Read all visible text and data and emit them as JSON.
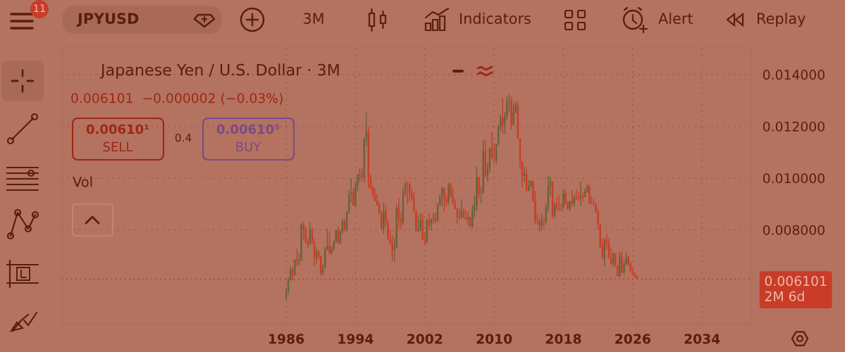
{
  "chart_data": {
    "type": "candlestick",
    "title": "Japanese Yen / U.S. Dollar · 3M",
    "subtitle": "0.006101  −0.000002 (−0.03%)",
    "annotations": [
      "11",
      "JPYUSD",
      "3M",
      "Indicators",
      "Alert",
      "Replay",
      "0.00610¹",
      "SELL",
      "0.4",
      "0.00610⁵",
      "BUY",
      "Vol"
    ],
    "x": [
      "1986-01",
      "1986-04",
      "1986-07",
      "1986-10",
      "1987-01",
      "1987-04",
      "1987-07",
      "1987-10",
      "1988-01",
      "1988-04",
      "1988-07",
      "1988-10",
      "1989-01",
      "1989-04",
      "1989-07",
      "1989-10",
      "1990-01",
      "1990-04",
      "1990-07",
      "1990-10",
      "1991-01",
      "1991-04",
      "1991-07",
      "1991-10",
      "1992-01",
      "1992-04",
      "1992-07",
      "1992-10",
      "1993-01",
      "1993-04",
      "1993-07",
      "1993-10",
      "1994-01",
      "1994-04",
      "1994-07",
      "1994-10",
      "1995-01",
      "1995-04",
      "1995-07",
      "1995-10",
      "1996-01",
      "1996-04",
      "1996-07",
      "1996-10",
      "1997-01",
      "1997-04",
      "1997-07",
      "1997-10",
      "1998-01",
      "1998-04",
      "1998-07",
      "1998-10",
      "1999-01",
      "1999-04",
      "1999-07",
      "1999-10",
      "2000-01",
      "2000-04",
      "2000-07",
      "2000-10",
      "2001-01",
      "2001-04",
      "2001-07",
      "2001-10",
      "2002-01",
      "2002-04",
      "2002-07",
      "2002-10",
      "2003-01",
      "2003-04",
      "2003-07",
      "2003-10",
      "2004-01",
      "2004-04",
      "2004-07",
      "2004-10",
      "2005-01",
      "2005-04",
      "2005-07",
      "2005-10",
      "2006-01",
      "2006-04",
      "2006-07",
      "2006-10",
      "2007-01",
      "2007-04",
      "2007-07",
      "2007-10",
      "2008-01",
      "2008-04",
      "2008-07",
      "2008-10",
      "2009-01",
      "2009-04",
      "2009-07",
      "2009-10",
      "2010-01",
      "2010-04",
      "2010-07",
      "2010-10",
      "2011-01",
      "2011-04",
      "2011-07",
      "2011-10",
      "2012-01",
      "2012-04",
      "2012-07",
      "2012-10",
      "2013-01",
      "2013-04",
      "2013-07",
      "2013-10",
      "2014-01",
      "2014-04",
      "2014-07",
      "2014-10",
      "2015-01",
      "2015-04",
      "2015-07",
      "2015-10",
      "2016-01",
      "2016-04",
      "2016-07",
      "2016-10",
      "2017-01",
      "2017-04",
      "2017-07",
      "2017-10",
      "2018-01",
      "2018-04",
      "2018-07",
      "2018-10",
      "2019-01",
      "2019-04",
      "2019-07",
      "2019-10",
      "2020-01",
      "2020-04",
      "2020-07",
      "2020-10",
      "2021-01",
      "2021-04",
      "2021-07",
      "2021-10",
      "2022-01",
      "2022-04",
      "2022-07",
      "2022-10",
      "2023-01",
      "2023-04",
      "2023-07",
      "2023-10",
      "2024-01",
      "2024-04",
      "2024-07",
      "2024-10",
      "2025-01",
      "2025-04",
      "2025-07",
      "2025-10",
      "2026-01",
      "2026-04",
      "2026-07"
    ],
    "ohlc": [
      [
        0.00535,
        0.00575,
        0.0053,
        0.00565
      ],
      [
        0.00565,
        0.00615,
        0.0055,
        0.00606
      ],
      [
        0.00606,
        0.0066,
        0.00602,
        0.00649
      ],
      [
        0.00649,
        0.00654,
        0.00606,
        0.00625
      ],
      [
        0.00625,
        0.00687,
        0.00623,
        0.00685
      ],
      [
        0.00685,
        0.00728,
        0.00662,
        0.0068
      ],
      [
        0.0068,
        0.0071,
        0.0066,
        0.00683
      ],
      [
        0.00683,
        0.00826,
        0.0068,
        0.0082
      ],
      [
        0.0082,
        0.00832,
        0.0076,
        0.00803
      ],
      [
        0.00803,
        0.00812,
        0.00746,
        0.00752
      ],
      [
        0.00752,
        0.00766,
        0.0073,
        0.00744
      ],
      [
        0.00744,
        0.00829,
        0.00741,
        0.00799
      ],
      [
        0.00799,
        0.0081,
        0.00747,
        0.00754
      ],
      [
        0.00754,
        0.00766,
        0.00661,
        0.00694
      ],
      [
        0.00694,
        0.00733,
        0.00669,
        0.00717
      ],
      [
        0.00717,
        0.00719,
        0.00683,
        0.00697
      ],
      [
        0.00697,
        0.00699,
        0.00624,
        0.00634
      ],
      [
        0.00634,
        0.00666,
        0.00623,
        0.00656
      ],
      [
        0.00656,
        0.00735,
        0.00651,
        0.00725
      ],
      [
        0.00725,
        0.00805,
        0.00722,
        0.00738
      ],
      [
        0.00738,
        0.00791,
        0.00704,
        0.00712
      ],
      [
        0.00712,
        0.00735,
        0.00704,
        0.00725
      ],
      [
        0.00725,
        0.0076,
        0.00719,
        0.00752
      ],
      [
        0.00752,
        0.00799,
        0.0075,
        0.00799
      ],
      [
        0.00799,
        0.00815,
        0.00743,
        0.0075
      ],
      [
        0.0075,
        0.00802,
        0.00743,
        0.00794
      ],
      [
        0.00794,
        0.00843,
        0.00784,
        0.00836
      ],
      [
        0.00836,
        0.0084,
        0.00794,
        0.00801
      ],
      [
        0.00801,
        0.00871,
        0.00794,
        0.00867
      ],
      [
        0.00867,
        0.00954,
        0.00862,
        0.00939
      ],
      [
        0.00939,
        0.00999,
        0.00905,
        0.00945
      ],
      [
        0.00945,
        0.00962,
        0.00893,
        0.00894
      ],
      [
        0.00894,
        0.00987,
        0.00889,
        0.00972
      ],
      [
        0.00972,
        0.01015,
        0.00948,
        0.01014
      ],
      [
        0.01014,
        0.01038,
        0.00985,
        0.01015
      ],
      [
        0.01015,
        0.0104,
        0.0099,
        0.01003
      ],
      [
        0.01003,
        0.01155,
        0.00985,
        0.01155
      ],
      [
        0.01155,
        0.01254,
        0.01124,
        0.01181
      ],
      [
        0.01181,
        0.01198,
        0.00959,
        0.01004
      ],
      [
        0.01004,
        0.01015,
        0.00957,
        0.00966
      ],
      [
        0.00966,
        0.00971,
        0.00926,
        0.00936
      ],
      [
        0.00936,
        0.0096,
        0.00909,
        0.00912
      ],
      [
        0.00912,
        0.00938,
        0.00894,
        0.00897
      ],
      [
        0.00897,
        0.00906,
        0.00861,
        0.00862
      ],
      [
        0.00862,
        0.00873,
        0.00801,
        0.00806
      ],
      [
        0.00806,
        0.00904,
        0.00784,
        0.00873
      ],
      [
        0.00873,
        0.00895,
        0.00813,
        0.00829
      ],
      [
        0.00829,
        0.0084,
        0.0076,
        0.00767
      ],
      [
        0.00767,
        0.00801,
        0.00741,
        0.0075
      ],
      [
        0.0075,
        0.00778,
        0.00681,
        0.00722
      ],
      [
        0.00722,
        0.00769,
        0.00677,
        0.00733
      ],
      [
        0.00733,
        0.00897,
        0.0073,
        0.00884
      ],
      [
        0.00884,
        0.00923,
        0.00805,
        0.00842
      ],
      [
        0.00842,
        0.00866,
        0.00802,
        0.00826
      ],
      [
        0.00826,
        0.00965,
        0.0082,
        0.00943
      ],
      [
        0.00943,
        0.00987,
        0.0093,
        0.00978
      ],
      [
        0.00978,
        0.00986,
        0.00897,
        0.00976
      ],
      [
        0.00976,
        0.00986,
        0.00909,
        0.00943
      ],
      [
        0.00943,
        0.00959,
        0.00914,
        0.00926
      ],
      [
        0.00926,
        0.00945,
        0.0087,
        0.00874
      ],
      [
        0.00874,
        0.00877,
        0.00792,
        0.00797
      ],
      [
        0.00797,
        0.00855,
        0.0079,
        0.00803
      ],
      [
        0.00803,
        0.00864,
        0.00794,
        0.00838
      ],
      [
        0.00838,
        0.00864,
        0.00759,
        0.00763
      ],
      [
        0.00763,
        0.00792,
        0.0074,
        0.00754
      ],
      [
        0.00754,
        0.00845,
        0.00746,
        0.00837
      ],
      [
        0.00837,
        0.00866,
        0.008,
        0.00822
      ],
      [
        0.00822,
        0.00845,
        0.00796,
        0.00842
      ],
      [
        0.00842,
        0.00866,
        0.00825,
        0.00847
      ],
      [
        0.00847,
        0.00867,
        0.00826,
        0.00835
      ],
      [
        0.00835,
        0.00903,
        0.0083,
        0.00898
      ],
      [
        0.00898,
        0.00936,
        0.00893,
        0.00933
      ],
      [
        0.00933,
        0.00967,
        0.00891,
        0.0096
      ],
      [
        0.0096,
        0.00965,
        0.0087,
        0.00919
      ],
      [
        0.00919,
        0.00933,
        0.00891,
        0.00909
      ],
      [
        0.00909,
        0.00982,
        0.00897,
        0.00975
      ],
      [
        0.00975,
        0.00983,
        0.00926,
        0.00933
      ],
      [
        0.00933,
        0.00962,
        0.00899,
        0.00902
      ],
      [
        0.00902,
        0.00919,
        0.00879,
        0.00882
      ],
      [
        0.00882,
        0.00887,
        0.00824,
        0.00848
      ],
      [
        0.00848,
        0.00882,
        0.00838,
        0.0085
      ],
      [
        0.0085,
        0.00919,
        0.00845,
        0.00873
      ],
      [
        0.00873,
        0.00882,
        0.00845,
        0.00847
      ],
      [
        0.00847,
        0.00874,
        0.00834,
        0.0084
      ],
      [
        0.0084,
        0.00868,
        0.00818,
        0.00849
      ],
      [
        0.00849,
        0.0085,
        0.00806,
        0.00812
      ],
      [
        0.00812,
        0.00896,
        0.00808,
        0.00871
      ],
      [
        0.00871,
        0.00933,
        0.00848,
        0.00895
      ],
      [
        0.00895,
        0.01044,
        0.00873,
        0.01003
      ],
      [
        0.01003,
        0.01005,
        0.00921,
        0.00942
      ],
      [
        0.00942,
        0.00966,
        0.00903,
        0.00943
      ],
      [
        0.00943,
        0.01148,
        0.00939,
        0.01104
      ],
      [
        0.01104,
        0.01148,
        0.01003,
        0.01011
      ],
      [
        0.01011,
        0.01059,
        0.00986,
        0.01037
      ],
      [
        0.01037,
        0.01118,
        0.01022,
        0.01115
      ],
      [
        0.01115,
        0.01179,
        0.01073,
        0.01075
      ],
      [
        0.01075,
        0.01134,
        0.01056,
        0.0107
      ],
      [
        0.0107,
        0.01134,
        0.01054,
        0.01131
      ],
      [
        0.01131,
        0.01206,
        0.01125,
        0.01198
      ],
      [
        0.01198,
        0.01247,
        0.01183,
        0.01233
      ],
      [
        0.01233,
        0.01311,
        0.0117,
        0.01203
      ],
      [
        0.01203,
        0.01256,
        0.0117,
        0.01242
      ],
      [
        0.01242,
        0.01318,
        0.01227,
        0.01297
      ],
      [
        0.01297,
        0.01323,
        0.01256,
        0.013
      ],
      [
        0.013,
        0.01316,
        0.01188,
        0.01206
      ],
      [
        0.01206,
        0.01289,
        0.01205,
        0.01253
      ],
      [
        0.01253,
        0.01297,
        0.0125,
        0.01282
      ],
      [
        0.01282,
        0.01292,
        0.01152,
        0.01153
      ],
      [
        0.01153,
        0.01156,
        0.01034,
        0.01062
      ],
      [
        0.01062,
        0.01066,
        0.00964,
        0.01009
      ],
      [
        0.01009,
        0.01044,
        0.00985,
        0.01017
      ],
      [
        0.01017,
        0.01035,
        0.00949,
        0.0095
      ],
      [
        0.0095,
        0.00992,
        0.00949,
        0.00969
      ],
      [
        0.00969,
        0.00992,
        0.00961,
        0.00987
      ],
      [
        0.00987,
        0.00989,
        0.00908,
        0.00912
      ],
      [
        0.00912,
        0.00951,
        0.00821,
        0.00835
      ],
      [
        0.00835,
        0.00863,
        0.0082,
        0.00833
      ],
      [
        0.00833,
        0.00845,
        0.00794,
        0.00816
      ],
      [
        0.00816,
        0.00861,
        0.00798,
        0.00834
      ],
      [
        0.00834,
        0.00847,
        0.00808,
        0.00832
      ],
      [
        0.00832,
        0.00903,
        0.00822,
        0.00889
      ],
      [
        0.00889,
        0.0101,
        0.0087,
        0.00969
      ],
      [
        0.00969,
        0.01005,
        0.0093,
        0.00987
      ],
      [
        0.00987,
        0.00988,
        0.00842,
        0.00855
      ],
      [
        0.00855,
        0.00908,
        0.00843,
        0.00898
      ],
      [
        0.00898,
        0.00925,
        0.00874,
        0.0089
      ],
      [
        0.0089,
        0.00932,
        0.00873,
        0.00889
      ],
      [
        0.00889,
        0.00903,
        0.00872,
        0.00887
      ],
      [
        0.00887,
        0.00956,
        0.00882,
        0.00941
      ],
      [
        0.00941,
        0.00956,
        0.00898,
        0.00903
      ],
      [
        0.00903,
        0.00912,
        0.00879,
        0.0088
      ],
      [
        0.0088,
        0.00912,
        0.00873,
        0.00912
      ],
      [
        0.00912,
        0.00953,
        0.00891,
        0.00902
      ],
      [
        0.00902,
        0.00936,
        0.0089,
        0.00928
      ],
      [
        0.00928,
        0.00957,
        0.00915,
        0.00925
      ],
      [
        0.00925,
        0.00946,
        0.00912,
        0.0092
      ],
      [
        0.0092,
        0.00988,
        0.00891,
        0.0093
      ],
      [
        0.0093,
        0.00944,
        0.0091,
        0.00927
      ],
      [
        0.00927,
        0.0096,
        0.00927,
        0.00948
      ],
      [
        0.00948,
        0.00975,
        0.00943,
        0.00969
      ],
      [
        0.00969,
        0.00975,
        0.00902,
        0.00903
      ],
      [
        0.00903,
        0.0093,
        0.00899,
        0.009
      ],
      [
        0.009,
        0.0092,
        0.00895,
        0.00898
      ],
      [
        0.00898,
        0.00903,
        0.00866,
        0.00869
      ],
      [
        0.00869,
        0.00881,
        0.00799,
        0.00822
      ],
      [
        0.00822,
        0.00824,
        0.0073,
        0.00737
      ],
      [
        0.00737,
        0.00767,
        0.00685,
        0.00691
      ],
      [
        0.00691,
        0.00766,
        0.00658,
        0.00763
      ],
      [
        0.00763,
        0.00786,
        0.00725,
        0.00753
      ],
      [
        0.00753,
        0.00766,
        0.00689,
        0.00693
      ],
      [
        0.00693,
        0.00728,
        0.00667,
        0.00669
      ],
      [
        0.00669,
        0.00713,
        0.00658,
        0.00709
      ],
      [
        0.00709,
        0.0071,
        0.00658,
        0.00661
      ],
      [
        0.00661,
        0.00663,
        0.00621,
        0.00622
      ],
      [
        0.00622,
        0.00716,
        0.00618,
        0.00696
      ],
      [
        0.00696,
        0.00716,
        0.00633,
        0.00636
      ],
      [
        0.00636,
        0.00683,
        0.00629,
        0.00667
      ],
      [
        0.00667,
        0.00715,
        0.00664,
        0.00694
      ],
      [
        0.00694,
        0.00701,
        0.00662,
        0.00667
      ],
      [
        0.00667,
        0.00678,
        0.00637,
        0.0064
      ],
      [
        0.0064,
        0.00656,
        0.00623,
        0.00628
      ],
      [
        0.00628,
        0.00637,
        0.00615,
        0.00621
      ],
      [
        0.00621,
        0.00624,
        0.00609,
        0.006101
      ]
    ],
    "colors": [
      "#6b6038",
      "#6b6038",
      "#6b6038",
      "#c83c28",
      "#6b6038",
      "#c83c28",
      "#6b6038",
      "#6b6038",
      "#c83c28",
      "#c83c28",
      "#c83c28",
      "#6b6038",
      "#c83c28",
      "#c83c28",
      "#6b6038",
      "#c83c28",
      "#c83c28",
      "#6b6038",
      "#6b6038",
      "#6b6038",
      "#c83c28",
      "#6b6038",
      "#6b6038",
      "#6b6038",
      "#c83c28",
      "#6b6038",
      "#6b6038",
      "#c83c28",
      "#6b6038",
      "#6b6038",
      "#6b6038",
      "#c83c28",
      "#6b6038",
      "#6b6038",
      "#6b6038",
      "#c83c28",
      "#6b6038",
      "#6b6038",
      "#c83c28",
      "#c83c28",
      "#c83c28",
      "#c83c28",
      "#c83c28",
      "#c83c28",
      "#c83c28",
      "#6b6038",
      "#c83c28",
      "#c83c28",
      "#c83c28",
      "#c83c28",
      "#6b6038",
      "#6b6038",
      "#c83c28",
      "#c83c28",
      "#6b6038",
      "#6b6038",
      "#c83c28",
      "#c83c28",
      "#c83c28",
      "#c83c28",
      "#c83c28",
      "#6b6038",
      "#6b6038",
      "#c83c28",
      "#c83c28",
      "#6b6038",
      "#c83c28",
      "#6b6038",
      "#6b6038",
      "#c83c28",
      "#6b6038",
      "#6b6038",
      "#6b6038",
      "#c83c28",
      "#c83c28",
      "#6b6038",
      "#c83c28",
      "#c83c28",
      "#c83c28",
      "#c83c28",
      "#6b6038",
      "#6b6038",
      "#c83c28",
      "#c83c28",
      "#6b6038",
      "#c83c28",
      "#6b6038",
      "#6b6038",
      "#6b6038",
      "#c83c28",
      "#6b6038",
      "#6b6038",
      "#c83c28",
      "#6b6038",
      "#6b6038",
      "#c83c28",
      "#c83c28",
      "#6b6038",
      "#6b6038",
      "#6b6038",
      "#c83c28",
      "#6b6038",
      "#6b6038",
      "#6b6038",
      "#c83c28",
      "#6b6038",
      "#6b6038",
      "#c83c28",
      "#c83c28",
      "#c83c28",
      "#6b6038",
      "#c83c28",
      "#6b6038",
      "#6b6038",
      "#c83c28",
      "#c83c28",
      "#c83c28",
      "#c83c28",
      "#6b6038",
      "#c83c28",
      "#6b6038",
      "#6b6038",
      "#6b6038",
      "#c83c28",
      "#6b6038",
      "#c83c28",
      "#c83c28",
      "#c83c28",
      "#6b6038",
      "#c83c28",
      "#c83c28",
      "#6b6038",
      "#c83c28",
      "#6b6038",
      "#c83c28",
      "#c83c28",
      "#6b6038",
      "#c83c28",
      "#6b6038",
      "#6b6038",
      "#c83c28",
      "#c83c28",
      "#c83c28",
      "#c83c28",
      "#c83c28",
      "#c83c28",
      "#c83c28",
      "#6b6038",
      "#c83c28",
      "#c83c28",
      "#c83c28",
      "#6b6038",
      "#c83c28",
      "#c83c28",
      "#6b6038",
      "#c83c28",
      "#6b6038",
      "#6b6038",
      "#c83c28",
      "#c83c28",
      "#c83c28",
      "#c83c28",
      "#c83c28"
    ],
    "xlim": [
      "1960-02-17",
      "2039-08-10"
    ],
    "ylim": [
      0.00437,
      0.01503
    ],
    "xticks": [
      "1986",
      "1994",
      "2002",
      "2010",
      "2018",
      "2026",
      "2034"
    ],
    "yticks": [
      {
        "value": 0.008,
        "label": "0.008000"
      },
      {
        "value": 0.01,
        "label": "0.010000"
      },
      {
        "value": 0.012,
        "label": "0.012000"
      },
      {
        "value": 0.014,
        "label": "0.014000"
      }
    ],
    "grid": true,
    "ref_lines": [
      {
        "axis": "y",
        "value": 0.006101,
        "label": "0.006101\n2M 6d",
        "color": "#c83c28",
        "line_style": "dotted"
      }
    ]
  }
}
